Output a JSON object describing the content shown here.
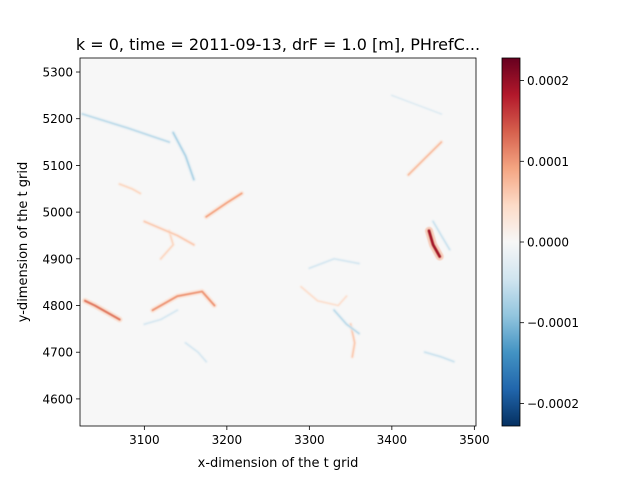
{
  "chart_data": {
    "type": "heatmap",
    "title": "k = 0, time = 2011-09-13, drF = 1.0 [m], PHrefC...",
    "xlabel": "x-dimension of the t grid",
    "ylabel": "y-dimension of the t grid",
    "xlim": [
      3022,
      3502
    ],
    "ylim": [
      4542,
      5330
    ],
    "xticks": [
      3100,
      3200,
      3300,
      3400,
      3500
    ],
    "yticks": [
      4600,
      4700,
      4800,
      4900,
      5000,
      5100,
      5200,
      5300
    ],
    "colorbar": {
      "colormap": "RdBu_r",
      "vmin": -0.000228,
      "vmax": 0.000228,
      "ticks": [
        -0.0002,
        -0.0001,
        0.0,
        0.0001,
        0.0002
      ],
      "tick_labels": [
        "−0.0002",
        "−0.0001",
        "0.0000",
        "0.0001",
        "0.0002"
      ],
      "colors": {
        "low": "#053061",
        "mid": "#f7f7f7",
        "high": "#67001f"
      }
    },
    "features": [
      {
        "kind": "filament",
        "sign": 1,
        "amp": 0.00019,
        "points": [
          [
            3445,
            4960
          ],
          [
            3450,
            4930
          ],
          [
            3458,
            4905
          ]
        ]
      },
      {
        "kind": "filament",
        "sign": 1,
        "amp": 0.00012,
        "points": [
          [
            3028,
            4810
          ],
          [
            3040,
            4800
          ],
          [
            3055,
            4785
          ],
          [
            3070,
            4770
          ]
        ]
      },
      {
        "kind": "filament",
        "sign": 1,
        "amp": 0.0001,
        "points": [
          [
            3110,
            4790
          ],
          [
            3140,
            4820
          ],
          [
            3170,
            4830
          ],
          [
            3185,
            4800
          ]
        ]
      },
      {
        "kind": "filament",
        "sign": 1,
        "amp": 9e-05,
        "points": [
          [
            3175,
            4990
          ],
          [
            3200,
            5020
          ],
          [
            3218,
            5040
          ]
        ]
      },
      {
        "kind": "filament",
        "sign": 1,
        "amp": 7e-05,
        "points": [
          [
            3420,
            5080
          ],
          [
            3440,
            5115
          ],
          [
            3460,
            5150
          ]
        ]
      },
      {
        "kind": "filament",
        "sign": 1,
        "amp": 6e-05,
        "points": [
          [
            3350,
            4760
          ],
          [
            3355,
            4720
          ],
          [
            3352,
            4690
          ]
        ]
      },
      {
        "kind": "filament",
        "sign": 1,
        "amp": 5e-05,
        "points": [
          [
            3070,
            5060
          ],
          [
            3085,
            5050
          ],
          [
            3095,
            5040
          ]
        ]
      },
      {
        "kind": "filament",
        "sign": 1,
        "amp": 5e-05,
        "points": [
          [
            3120,
            4900
          ],
          [
            3135,
            4930
          ],
          [
            3130,
            4960
          ]
        ]
      },
      {
        "kind": "filament",
        "sign": 1,
        "amp": 4e-05,
        "points": [
          [
            3290,
            4840
          ],
          [
            3310,
            4810
          ],
          [
            3335,
            4800
          ],
          [
            3345,
            4820
          ]
        ]
      },
      {
        "kind": "filament",
        "sign": 1,
        "amp": 6e-05,
        "points": [
          [
            3100,
            4980
          ],
          [
            3140,
            4950
          ],
          [
            3160,
            4930
          ]
        ]
      },
      {
        "kind": "filament",
        "sign": -1,
        "amp": 7e-05,
        "points": [
          [
            3135,
            5170
          ],
          [
            3150,
            5120
          ],
          [
            3160,
            5070
          ]
        ]
      },
      {
        "kind": "filament",
        "sign": -1,
        "amp": 6e-05,
        "points": [
          [
            3025,
            5210
          ],
          [
            3080,
            5180
          ],
          [
            3130,
            5150
          ]
        ]
      },
      {
        "kind": "filament",
        "sign": -1,
        "amp": 6e-05,
        "points": [
          [
            3330,
            4790
          ],
          [
            3345,
            4760
          ],
          [
            3360,
            4740
          ]
        ]
      },
      {
        "kind": "filament",
        "sign": -1,
        "amp": 5e-05,
        "points": [
          [
            3440,
            4700
          ],
          [
            3460,
            4690
          ],
          [
            3475,
            4680
          ]
        ]
      },
      {
        "kind": "filament",
        "sign": -1,
        "amp": 5e-05,
        "points": [
          [
            3450,
            4980
          ],
          [
            3460,
            4950
          ],
          [
            3470,
            4920
          ]
        ]
      },
      {
        "kind": "filament",
        "sign": -1,
        "amp": 4e-05,
        "points": [
          [
            3300,
            4880
          ],
          [
            3330,
            4900
          ],
          [
            3360,
            4890
          ]
        ]
      },
      {
        "kind": "filament",
        "sign": -1,
        "amp": 4e-05,
        "points": [
          [
            3100,
            4760
          ],
          [
            3120,
            4770
          ],
          [
            3140,
            4790
          ]
        ]
      },
      {
        "kind": "filament",
        "sign": -1,
        "amp": 4e-05,
        "points": [
          [
            3150,
            4720
          ],
          [
            3165,
            4700
          ],
          [
            3175,
            4680
          ]
        ]
      },
      {
        "kind": "filament",
        "sign": -1,
        "amp": 3e-05,
        "points": [
          [
            3400,
            5250
          ],
          [
            3430,
            5230
          ],
          [
            3460,
            5210
          ]
        ]
      }
    ]
  }
}
